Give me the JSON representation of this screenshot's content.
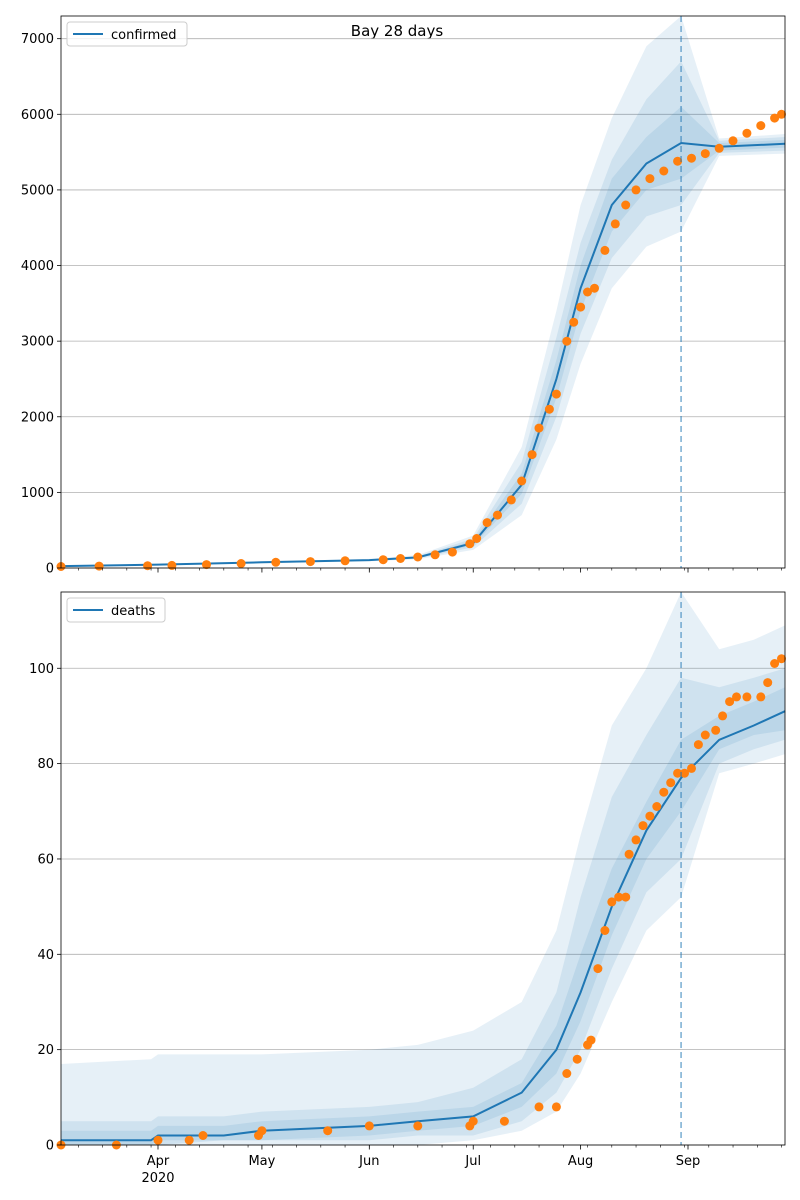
{
  "figure": {
    "title": "Bay 28 days",
    "forecast_start_date": "2020-08-30",
    "x_axis": {
      "range": [
        "2020-03-04",
        "2020-09-29"
      ],
      "month_ticks": [
        {
          "date": "2020-04-01",
          "label": "Apr",
          "sub_label": "2020"
        },
        {
          "date": "2020-05-01",
          "label": "May",
          "sub_label": ""
        },
        {
          "date": "2020-06-01",
          "label": "Jun",
          "sub_label": ""
        },
        {
          "date": "2020-07-01",
          "label": "Jul",
          "sub_label": ""
        },
        {
          "date": "2020-08-01",
          "label": "Aug",
          "sub_label": ""
        },
        {
          "date": "2020-09-01",
          "label": "Sep",
          "sub_label": ""
        }
      ]
    },
    "colors": {
      "model_line": "#1f77b4",
      "observed_points": "#ff7f0e",
      "band": "#1f77b4",
      "forecast_line": "#1f77b4",
      "grid": "#b0b0b0"
    }
  },
  "chart_data": [
    {
      "type": "line",
      "panel": "top",
      "legend_label": "confirmed",
      "legend_position": "upper-left",
      "grid": "horizontal",
      "ylim": [
        0,
        7300
      ],
      "yticks": [
        0,
        1000,
        2000,
        3000,
        4000,
        5000,
        6000,
        7000
      ],
      "model_curve": {
        "x": [
          "2020-03-04",
          "2020-04-01",
          "2020-05-01",
          "2020-06-01",
          "2020-06-15",
          "2020-07-01",
          "2020-07-15",
          "2020-07-25",
          "2020-08-01",
          "2020-08-10",
          "2020-08-20",
          "2020-08-30",
          "2020-09-10",
          "2020-09-29"
        ],
        "y": [
          25,
          45,
          75,
          105,
          140,
          330,
          1100,
          2500,
          3700,
          4800,
          5350,
          5620,
          5570,
          5610
        ]
      },
      "uncertainty_bands": [
        {
          "level": "outer",
          "lower": [
            20,
            40,
            65,
            90,
            115,
            240,
            700,
            1700,
            2700,
            3700,
            4250,
            4450,
            5450,
            5480
          ],
          "upper": [
            30,
            50,
            85,
            120,
            170,
            430,
            1600,
            3400,
            4800,
            5950,
            6900,
            7300,
            5680,
            5740
          ]
        },
        {
          "level": "middle",
          "lower": [
            22,
            42,
            70,
            96,
            125,
            275,
            850,
            2000,
            3100,
            4100,
            4650,
            4800,
            5490,
            5520
          ],
          "upper": [
            28,
            48,
            80,
            114,
            155,
            390,
            1400,
            3050,
            4300,
            5400,
            6200,
            6700,
            5650,
            5700
          ]
        },
        {
          "level": "inner",
          "lower": [
            24,
            44,
            73,
            101,
            133,
            300,
            980,
            2250,
            3400,
            4450,
            5000,
            5150,
            5520,
            5560
          ],
          "upper": [
            27,
            46,
            78,
            109,
            148,
            360,
            1250,
            2750,
            4000,
            5150,
            5700,
            6100,
            5620,
            5660
          ]
        }
      ],
      "observed": {
        "x": [
          "2020-03-04",
          "2020-03-15",
          "2020-03-29",
          "2020-04-05",
          "2020-04-15",
          "2020-04-25",
          "2020-05-05",
          "2020-05-15",
          "2020-05-25",
          "2020-06-05",
          "2020-06-10",
          "2020-06-15",
          "2020-06-20",
          "2020-06-25",
          "2020-06-30",
          "2020-07-02",
          "2020-07-05",
          "2020-07-08",
          "2020-07-12",
          "2020-07-15",
          "2020-07-18",
          "2020-07-20",
          "2020-07-23",
          "2020-07-25",
          "2020-07-28",
          "2020-07-30",
          "2020-08-01",
          "2020-08-03",
          "2020-08-05",
          "2020-08-08",
          "2020-08-11",
          "2020-08-14",
          "2020-08-17",
          "2020-08-21",
          "2020-08-25",
          "2020-08-29",
          "2020-09-02",
          "2020-09-06",
          "2020-09-10",
          "2020-09-14",
          "2020-09-18",
          "2020-09-22",
          "2020-09-26",
          "2020-09-28"
        ],
        "y": [
          20,
          25,
          30,
          35,
          45,
          60,
          75,
          85,
          95,
          110,
          125,
          145,
          175,
          210,
          320,
          390,
          600,
          700,
          900,
          1150,
          1500,
          1850,
          2100,
          2300,
          3000,
          3250,
          3450,
          3650,
          3700,
          4200,
          4550,
          4800,
          5000,
          5150,
          5250,
          5380,
          5420,
          5480,
          5550,
          5650,
          5750,
          5850,
          5950,
          6000
        ]
      }
    },
    {
      "type": "line",
      "panel": "bottom",
      "legend_label": "deaths",
      "legend_position": "upper-left",
      "grid": "horizontal",
      "ylim": [
        0,
        116
      ],
      "yticks": [
        0,
        20,
        40,
        60,
        80,
        100
      ],
      "model_curve": {
        "x": [
          "2020-03-04",
          "2020-03-30",
          "2020-04-01",
          "2020-04-20",
          "2020-05-01",
          "2020-06-01",
          "2020-06-15",
          "2020-07-01",
          "2020-07-15",
          "2020-07-25",
          "2020-08-01",
          "2020-08-10",
          "2020-08-20",
          "2020-08-30",
          "2020-09-10",
          "2020-09-20",
          "2020-09-29"
        ],
        "y": [
          1,
          1,
          2,
          2,
          3,
          4,
          5,
          6,
          11,
          20,
          32,
          50,
          66,
          77,
          85,
          88,
          91
        ]
      },
      "uncertainty_bands": [
        {
          "level": "outer",
          "lower": [
            0,
            0,
            0,
            0,
            0,
            0,
            0,
            1,
            3,
            7,
            15,
            30,
            45,
            52,
            78,
            80,
            82
          ],
          "upper": [
            17,
            18,
            19,
            19,
            19,
            20,
            21,
            24,
            30,
            45,
            65,
            88,
            100,
            116,
            104,
            106,
            109
          ]
        },
        {
          "level": "middle",
          "lower": [
            0,
            0,
            0,
            1,
            1,
            1,
            2,
            2,
            5,
            11,
            20,
            37,
            53,
            60,
            80,
            83,
            85
          ],
          "upper": [
            5,
            5,
            6,
            6,
            7,
            8,
            9,
            12,
            18,
            32,
            52,
            73,
            86,
            98,
            96,
            98,
            100
          ]
        },
        {
          "level": "inner",
          "lower": [
            0,
            0,
            1,
            1,
            1,
            2,
            3,
            4,
            8,
            15,
            26,
            44,
            60,
            70,
            83,
            86,
            87
          ],
          "upper": [
            3,
            3,
            4,
            4,
            5,
            6,
            7,
            8,
            13,
            25,
            40,
            58,
            72,
            85,
            90,
            93,
            96
          ]
        }
      ],
      "observed": {
        "x": [
          "2020-03-04",
          "2020-03-20",
          "2020-04-01",
          "2020-04-10",
          "2020-04-14",
          "2020-04-30",
          "2020-05-01",
          "2020-05-20",
          "2020-06-01",
          "2020-06-15",
          "2020-06-30",
          "2020-07-01",
          "2020-07-10",
          "2020-07-20",
          "2020-07-25",
          "2020-07-28",
          "2020-07-31",
          "2020-08-03",
          "2020-08-04",
          "2020-08-06",
          "2020-08-08",
          "2020-08-10",
          "2020-08-12",
          "2020-08-14",
          "2020-08-15",
          "2020-08-17",
          "2020-08-19",
          "2020-08-21",
          "2020-08-23",
          "2020-08-25",
          "2020-08-27",
          "2020-08-29",
          "2020-08-31",
          "2020-09-02",
          "2020-09-04",
          "2020-09-06",
          "2020-09-09",
          "2020-09-11",
          "2020-09-13",
          "2020-09-15",
          "2020-09-18",
          "2020-09-22",
          "2020-09-24",
          "2020-09-26",
          "2020-09-28"
        ],
        "y": [
          0,
          0,
          1,
          1,
          2,
          2,
          3,
          3,
          4,
          4,
          4,
          5,
          5,
          8,
          8,
          15,
          18,
          21,
          22,
          37,
          45,
          51,
          52,
          52,
          61,
          64,
          67,
          69,
          71,
          74,
          76,
          78,
          78,
          79,
          84,
          86,
          87,
          90,
          93,
          94,
          94,
          94,
          97,
          101,
          102
        ]
      }
    }
  ]
}
